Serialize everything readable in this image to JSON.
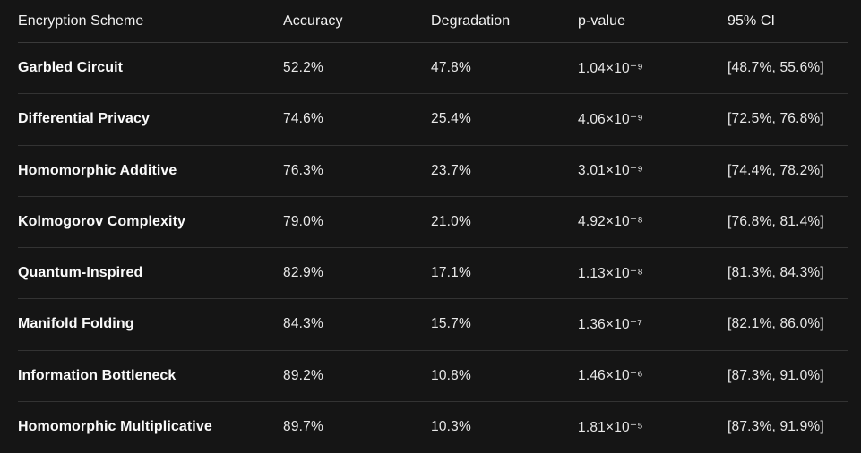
{
  "colors": {
    "background": "#151515",
    "divider": "#3a3a3a",
    "header_text": "#f2f2f2",
    "scheme_text": "#fafafa",
    "value_text": "#e8e8e8"
  },
  "table": {
    "columns": {
      "scheme": "Encryption Scheme",
      "accuracy": "Accuracy",
      "degradation": "Degradation",
      "p_value": "p-value",
      "ci": "95% CI"
    },
    "rows": [
      {
        "scheme": "Garbled Circuit",
        "accuracy": "52.2%",
        "degradation": "47.8%",
        "p_value": "1.04×10⁻⁹",
        "ci": "[48.7%, 55.6%]"
      },
      {
        "scheme": "Differential Privacy",
        "accuracy": "74.6%",
        "degradation": "25.4%",
        "p_value": "4.06×10⁻⁹",
        "ci": "[72.5%, 76.8%]"
      },
      {
        "scheme": "Homomorphic Additive",
        "accuracy": "76.3%",
        "degradation": "23.7%",
        "p_value": "3.01×10⁻⁹",
        "ci": "[74.4%, 78.2%]"
      },
      {
        "scheme": "Kolmogorov Complexity",
        "accuracy": "79.0%",
        "degradation": "21.0%",
        "p_value": "4.92×10⁻⁸",
        "ci": "[76.8%, 81.4%]"
      },
      {
        "scheme": "Quantum-Inspired",
        "accuracy": "82.9%",
        "degradation": "17.1%",
        "p_value": "1.13×10⁻⁸",
        "ci": "[81.3%, 84.3%]"
      },
      {
        "scheme": "Manifold Folding",
        "accuracy": "84.3%",
        "degradation": "15.7%",
        "p_value": "1.36×10⁻⁷",
        "ci": "[82.1%, 86.0%]"
      },
      {
        "scheme": "Information Bottleneck",
        "accuracy": "89.2%",
        "degradation": "10.8%",
        "p_value": "1.46×10⁻⁶",
        "ci": "[87.3%, 91.0%]"
      },
      {
        "scheme": "Homomorphic Multiplicative",
        "accuracy": "89.7%",
        "degradation": "10.3%",
        "p_value": "1.81×10⁻⁵",
        "ci": "[87.3%, 91.9%]"
      }
    ]
  },
  "chart_data": {
    "type": "table",
    "title": "",
    "columns": [
      "Encryption Scheme",
      "Accuracy",
      "Degradation",
      "p-value",
      "95% CI"
    ],
    "rows": [
      [
        "Garbled Circuit",
        "52.2%",
        "47.8%",
        "1.04×10⁻⁹",
        "[48.7%, 55.6%]"
      ],
      [
        "Differential Privacy",
        "74.6%",
        "25.4%",
        "4.06×10⁻⁹",
        "[72.5%, 76.8%]"
      ],
      [
        "Homomorphic Additive",
        "76.3%",
        "23.7%",
        "3.01×10⁻⁹",
        "[74.4%, 78.2%]"
      ],
      [
        "Kolmogorov Complexity",
        "79.0%",
        "21.0%",
        "4.92×10⁻⁸",
        "[76.8%, 81.4%]"
      ],
      [
        "Quantum-Inspired",
        "82.9%",
        "17.1%",
        "1.13×10⁻⁸",
        "[81.3%, 84.3%]"
      ],
      [
        "Manifold Folding",
        "84.3%",
        "15.7%",
        "1.36×10⁻⁷",
        "[82.1%, 86.0%]"
      ],
      [
        "Information Bottleneck",
        "89.2%",
        "10.8%",
        "1.46×10⁻⁶",
        "[87.3%, 91.0%]"
      ],
      [
        "Homomorphic Multiplicative",
        "89.7%",
        "10.3%",
        "1.81×10⁻⁵",
        "[87.3%, 91.9%]"
      ]
    ]
  }
}
